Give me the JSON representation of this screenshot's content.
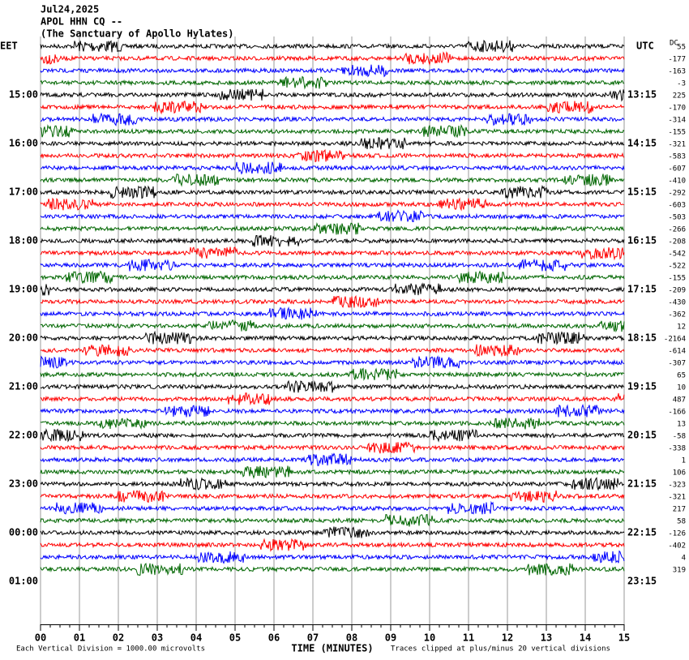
{
  "header": {
    "lines": [
      "Jul24,2025",
      "APOL HHN CQ --",
      "(The Sanctuary of Apollo Hylates)"
    ]
  },
  "left_zone": "EET",
  "left_times": [
    "15:00",
    "16:00",
    "17:00",
    "18:00",
    "19:00",
    "20:00",
    "21:00",
    "22:00",
    "23:00",
    "00:00",
    "01:00"
  ],
  "right_zone": "UTC",
  "right_times": [
    "13:15",
    "14:15",
    "15:15",
    "16:15",
    "17:15",
    "18:15",
    "19:15",
    "20:15",
    "21:15",
    "22:15",
    "23:15"
  ],
  "dc_label": "DC",
  "dc_values": [
    55,
    -177,
    -163,
    -3,
    225,
    -170,
    -314,
    -155,
    -321,
    -583,
    -607,
    -410,
    -292,
    -603,
    -503,
    -266,
    -208,
    -542,
    -522,
    -155,
    -209,
    -430,
    -362,
    12,
    -2164,
    -614,
    -307,
    65,
    10,
    487,
    -166,
    13,
    -58,
    -338,
    1,
    106,
    -323,
    -321,
    217,
    58,
    -126,
    -402,
    4,
    319
  ],
  "x_ticks": [
    "00",
    "01",
    "02",
    "03",
    "04",
    "05",
    "06",
    "07",
    "08",
    "09",
    "10",
    "11",
    "12",
    "13",
    "14",
    "15"
  ],
  "x_label": "TIME (MINUTES)",
  "footer_left": "Each Vertical Division = 1000.00 microvolts",
  "footer_right": "Traces clipped at plus/minus 20 vertical divisions"
}
